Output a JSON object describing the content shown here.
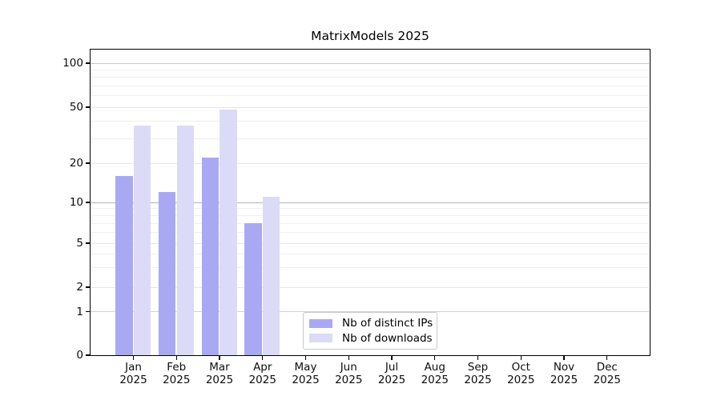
{
  "title": "MatrixModels 2025",
  "axes": {
    "y_tick_labels": [
      "100",
      "50",
      "20",
      "10",
      "5",
      "2",
      "1",
      "0"
    ],
    "y_tick_values": [
      100,
      50,
      20,
      10,
      5,
      2,
      1,
      0
    ],
    "x_months": [
      "Jan",
      "Feb",
      "Mar",
      "Apr",
      "May",
      "Jun",
      "Jul",
      "Aug",
      "Sep",
      "Oct",
      "Nov",
      "Dec"
    ],
    "x_year": "2025"
  },
  "legend": {
    "items": [
      {
        "label": "Nb of distinct IPs",
        "color": "#a9a9f3"
      },
      {
        "label": "Nb of downloads",
        "color": "#dbdbf8"
      }
    ]
  },
  "chart_data": {
    "type": "bar",
    "title": "MatrixModels 2025",
    "categories": [
      "Jan 2025",
      "Feb 2025",
      "Mar 2025",
      "Apr 2025",
      "May 2025",
      "Jun 2025",
      "Jul 2025",
      "Aug 2025",
      "Sep 2025",
      "Oct 2025",
      "Nov 2025",
      "Dec 2025"
    ],
    "series": [
      {
        "name": "Nb of distinct IPs",
        "color": "#a9a9f3",
        "values": [
          16,
          12,
          22,
          7,
          null,
          null,
          null,
          null,
          null,
          null,
          null,
          null
        ]
      },
      {
        "name": "Nb of downloads",
        "color": "#dbdbf8",
        "values": [
          37,
          37,
          48,
          11,
          null,
          null,
          null,
          null,
          null,
          null,
          null,
          null
        ]
      }
    ],
    "yscale": "symlog",
    "yticks": [
      0,
      1,
      2,
      5,
      10,
      20,
      50,
      100
    ],
    "ylim": [
      0,
      125
    ],
    "grid": true,
    "legend_position": "lower center inside axes"
  }
}
